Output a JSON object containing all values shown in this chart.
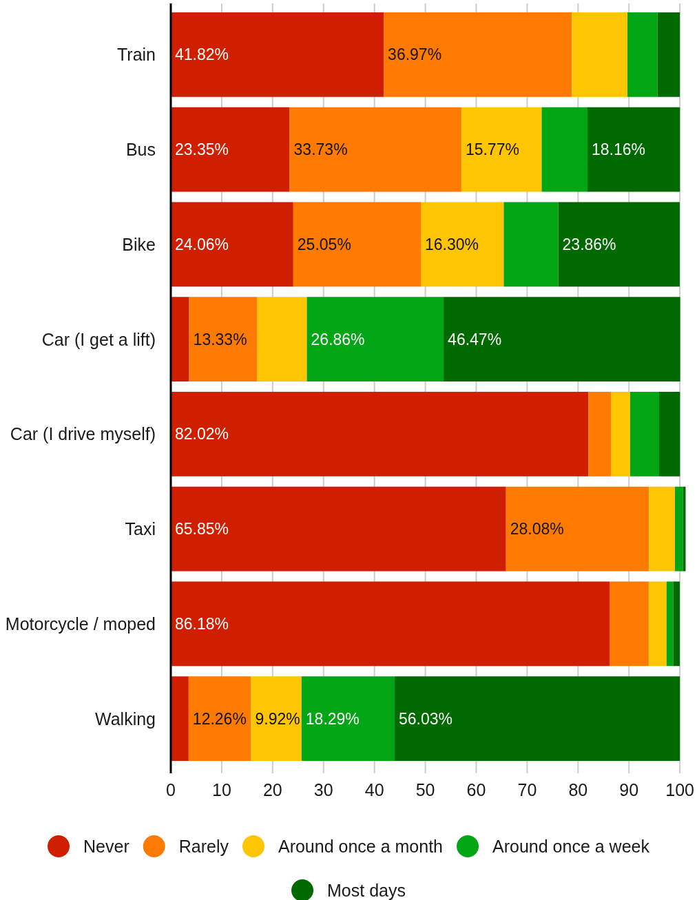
{
  "chart_data": {
    "type": "bar",
    "orientation": "horizontal",
    "stacked": true,
    "categories": [
      "Train",
      "Bus",
      "Bike",
      "Car (I get a lift)",
      "Car (I drive myself)",
      "Taxi",
      "Motorcycle / moped",
      "Walking"
    ],
    "series": [
      {
        "name": "Never",
        "color": "#d01f00",
        "values": [
          41.82,
          23.35,
          24.06,
          3.6,
          82.02,
          65.85,
          86.18,
          3.5
        ],
        "value_labels": [
          "41.82%",
          "23.35%",
          "24.06%",
          null,
          "82.02%",
          "65.85%",
          "86.18%",
          null
        ]
      },
      {
        "name": "Rarely",
        "color": "#ff7a00",
        "values": [
          36.97,
          33.73,
          25.05,
          13.33,
          4.5,
          28.08,
          7.7,
          12.26
        ],
        "value_labels": [
          "36.97%",
          "33.73%",
          "25.05%",
          "13.33%",
          null,
          "28.08%",
          null,
          "12.26%"
        ]
      },
      {
        "name": "Around once a month",
        "color": "#ffc500",
        "values": [
          10.9,
          15.77,
          16.3,
          9.8,
          3.7,
          5.1,
          3.5,
          9.92
        ],
        "value_labels": [
          null,
          "15.77%",
          "16.30%",
          null,
          null,
          null,
          null,
          "9.92%"
        ]
      },
      {
        "name": "Around once a week",
        "color": "#02a514",
        "values": [
          5.9,
          9.0,
          10.7,
          26.86,
          5.7,
          1.6,
          1.3,
          18.29
        ],
        "value_labels": [
          null,
          null,
          null,
          "26.86%",
          null,
          null,
          null,
          "18.29%"
        ]
      },
      {
        "name": "Most days",
        "color": "#006a00",
        "values": [
          4.4,
          18.16,
          23.86,
          46.47,
          4.1,
          0.5,
          1.3,
          56.03
        ],
        "value_labels": [
          null,
          "18.16%",
          "23.86%",
          "46.47%",
          null,
          null,
          null,
          "56.03%"
        ]
      }
    ],
    "xlim": [
      0,
      101.2
    ],
    "xticks": [
      0,
      10,
      20,
      30,
      40,
      50,
      60,
      70,
      80,
      90,
      100
    ],
    "grid": "x",
    "legend": "bottom"
  }
}
